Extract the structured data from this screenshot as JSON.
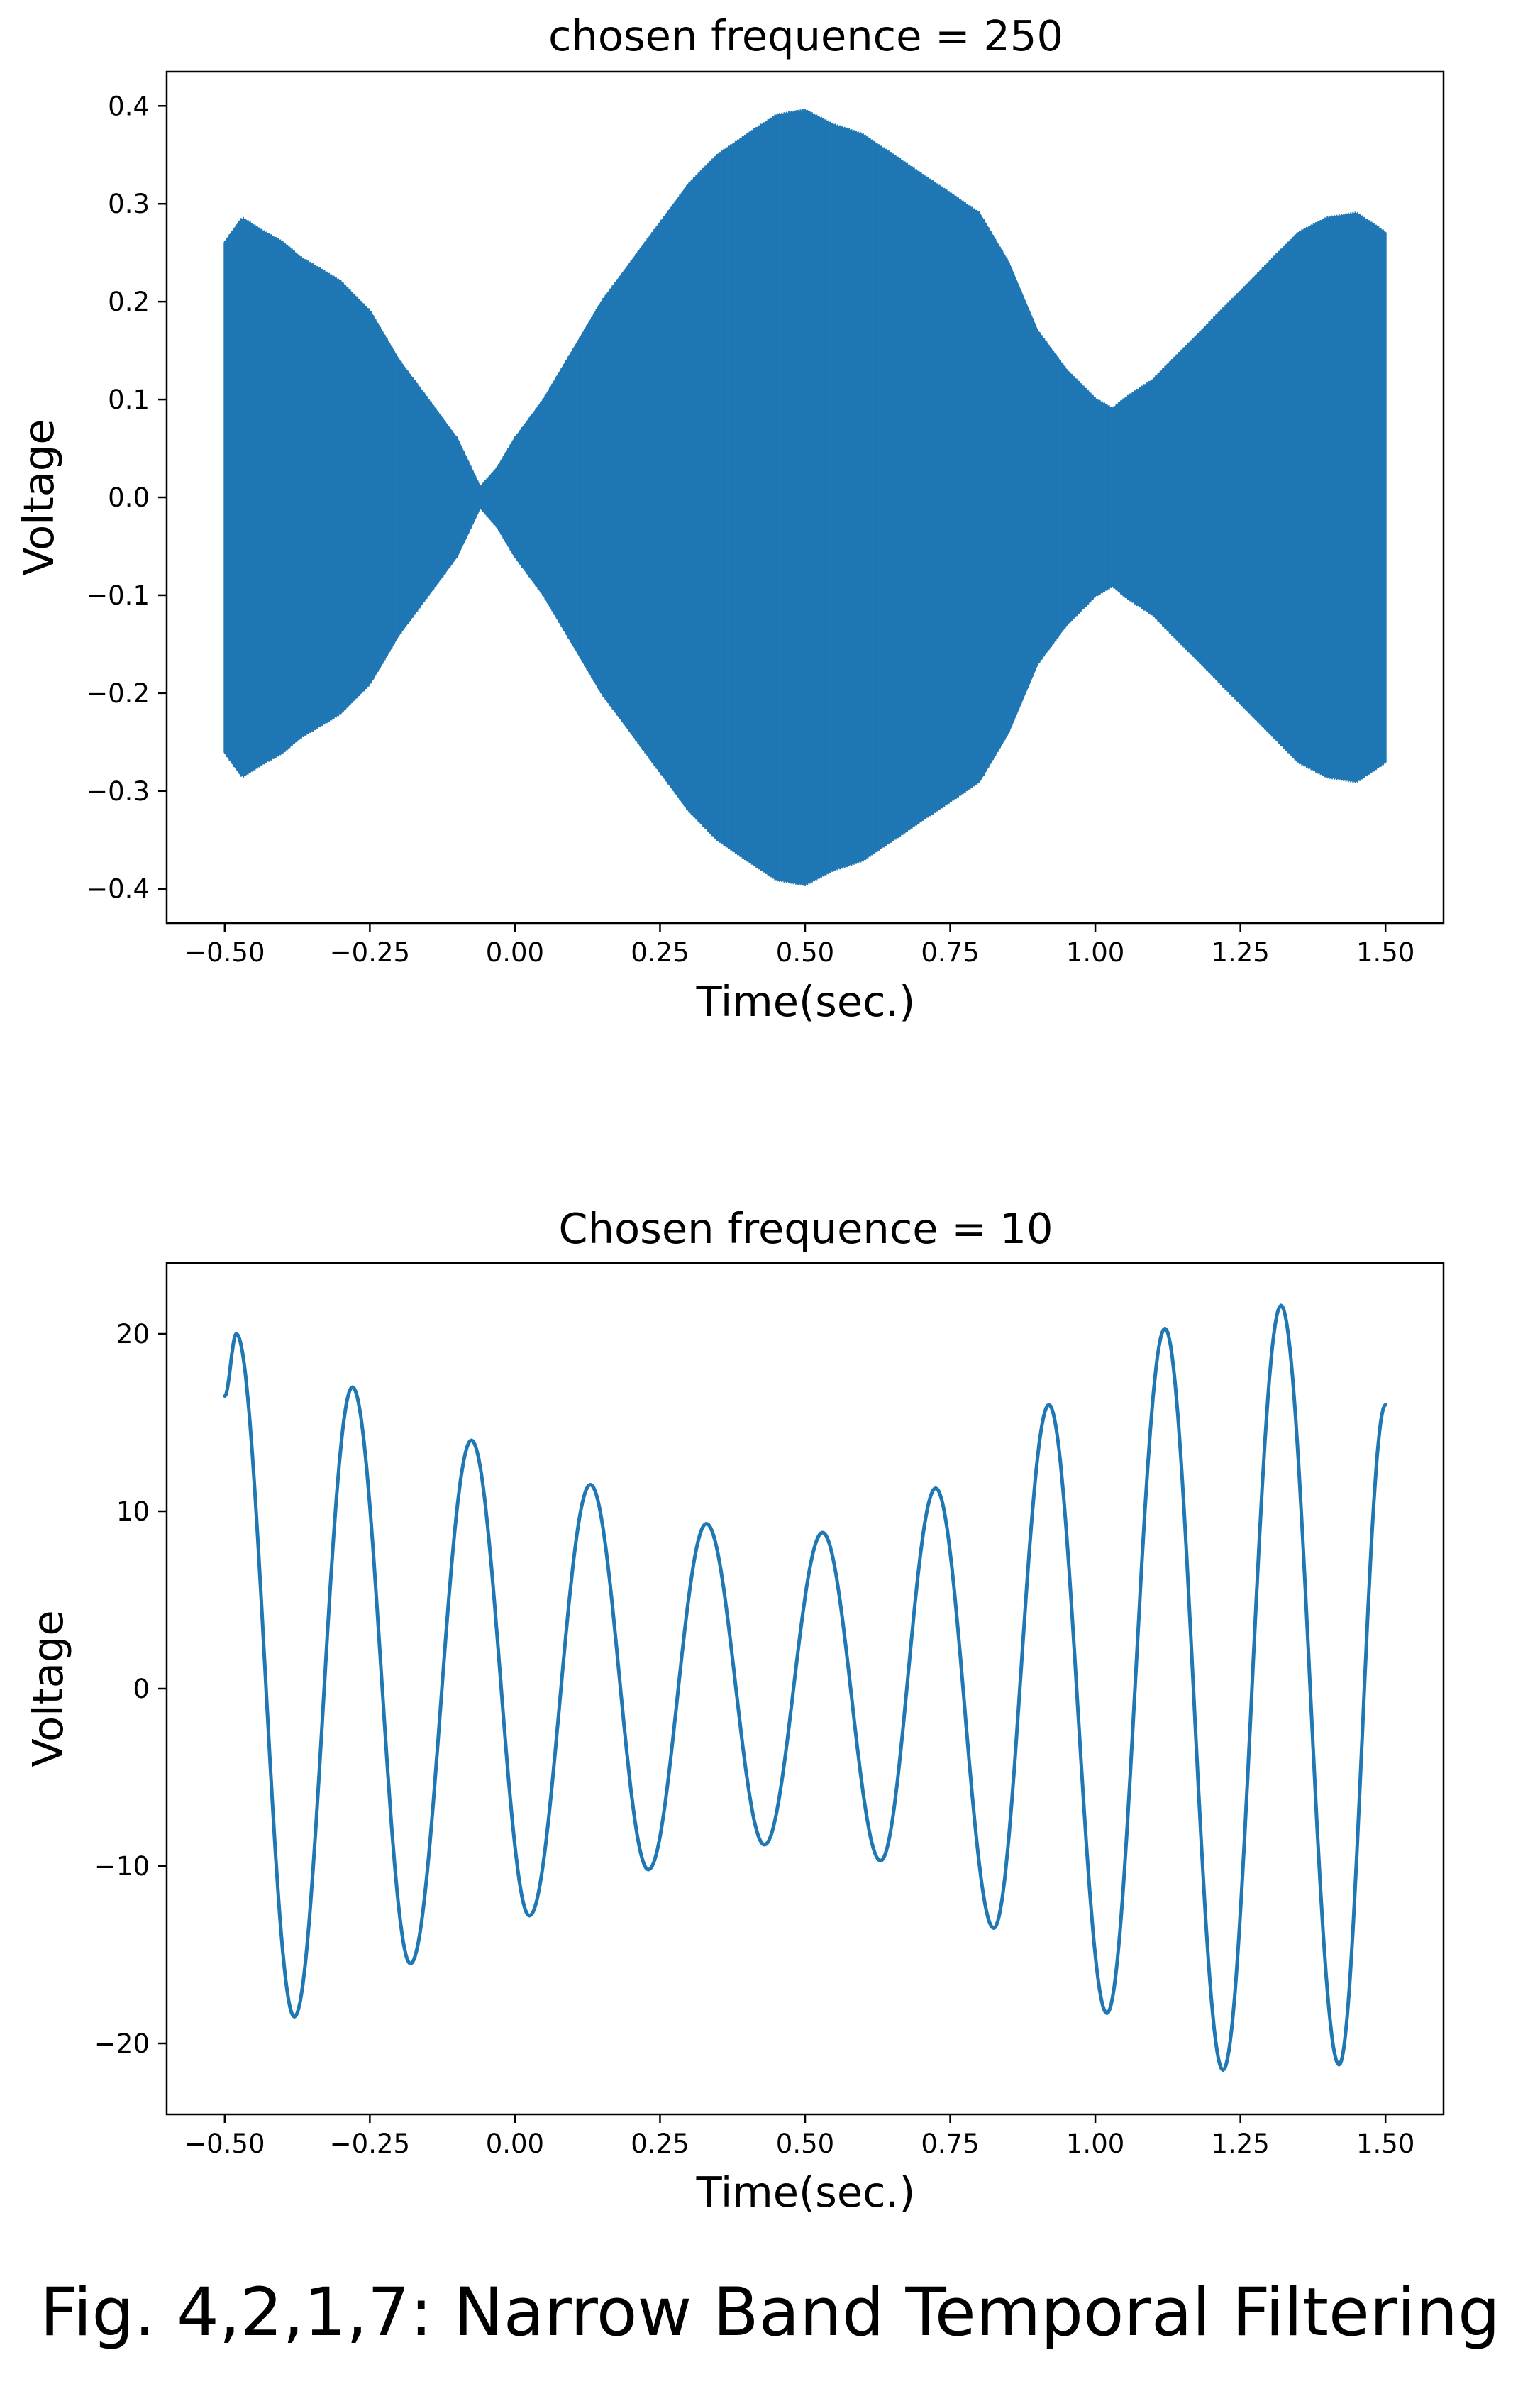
{
  "caption": "Fig. 4,2,1,7: Narrow Band Temporal Filtering",
  "colors": {
    "line": "#1f77b4",
    "axes": "#000000",
    "background": "#ffffff"
  },
  "chart_data": [
    {
      "type": "line",
      "title": "chosen frequence = 250",
      "xlabel": "Time(sec.)",
      "ylabel": "Voltage",
      "xlim": [
        -0.6,
        1.6
      ],
      "ylim": [
        -0.435,
        0.435
      ],
      "xticks": [
        -0.5,
        -0.25,
        0.0,
        0.25,
        0.5,
        0.75,
        1.0,
        1.25,
        1.5
      ],
      "xtick_labels": [
        "−0.50",
        "−0.25",
        "0.00",
        "0.25",
        "0.50",
        "0.75",
        "1.00",
        "1.25",
        "1.50"
      ],
      "yticks": [
        0.4,
        0.3,
        0.2,
        0.1,
        0.0,
        -0.1,
        -0.2,
        -0.3,
        -0.4
      ],
      "ytick_labels": [
        "0.4",
        "0.3",
        "0.2",
        "0.1",
        "0.0",
        "−0.1",
        "−0.2",
        "−0.3",
        "−0.4"
      ],
      "grid": false,
      "carrier_frequency_hz": 250,
      "envelope": {
        "x": [
          -0.5,
          -0.47,
          -0.43,
          -0.4,
          -0.37,
          -0.3,
          -0.25,
          -0.2,
          -0.15,
          -0.1,
          -0.06,
          -0.03,
          0.0,
          0.05,
          0.1,
          0.15,
          0.2,
          0.25,
          0.3,
          0.35,
          0.4,
          0.45,
          0.5,
          0.55,
          0.6,
          0.65,
          0.7,
          0.75,
          0.8,
          0.85,
          0.9,
          0.95,
          1.0,
          1.03,
          1.05,
          1.1,
          1.15,
          1.2,
          1.25,
          1.3,
          1.35,
          1.4,
          1.45,
          1.5
        ],
        "y": [
          0.26,
          0.285,
          0.27,
          0.26,
          0.245,
          0.22,
          0.19,
          0.14,
          0.1,
          0.06,
          0.01,
          0.03,
          0.06,
          0.1,
          0.15,
          0.2,
          0.24,
          0.28,
          0.32,
          0.35,
          0.37,
          0.39,
          0.395,
          0.38,
          0.37,
          0.35,
          0.33,
          0.31,
          0.29,
          0.24,
          0.17,
          0.13,
          0.1,
          0.09,
          0.1,
          0.12,
          0.15,
          0.18,
          0.21,
          0.24,
          0.27,
          0.285,
          0.29,
          0.27
        ]
      }
    },
    {
      "type": "line",
      "title": "Chosen frequence = 10",
      "xlabel": "Time(sec.)",
      "ylabel": "Voltage",
      "xlim": [
        -0.6,
        1.6
      ],
      "ylim": [
        -24,
        24
      ],
      "xticks": [
        -0.5,
        -0.25,
        0.0,
        0.25,
        0.5,
        0.75,
        1.0,
        1.25,
        1.5
      ],
      "xtick_labels": [
        "−0.50",
        "−0.25",
        "0.00",
        "0.25",
        "0.50",
        "0.75",
        "1.00",
        "1.25",
        "1.50"
      ],
      "yticks": [
        20,
        10,
        0,
        -10,
        -20
      ],
      "ytick_labels": [
        "20",
        "10",
        "0",
        "−10",
        "−20"
      ],
      "grid": false,
      "x": [
        -0.5,
        -0.48,
        -0.38,
        -0.28,
        -0.18,
        -0.075,
        0.025,
        0.13,
        0.23,
        0.33,
        0.43,
        0.53,
        0.63,
        0.725,
        0.825,
        0.92,
        1.02,
        1.12,
        1.22,
        1.32,
        1.42,
        1.5
      ],
      "y": [
        16.5,
        20.0,
        -18.5,
        17.0,
        -15.5,
        14.0,
        -12.8,
        11.5,
        -10.2,
        9.3,
        -8.8,
        8.8,
        -9.7,
        11.3,
        -13.5,
        16.0,
        -18.3,
        20.3,
        -21.5,
        21.6,
        -21.2,
        16.0
      ]
    }
  ]
}
